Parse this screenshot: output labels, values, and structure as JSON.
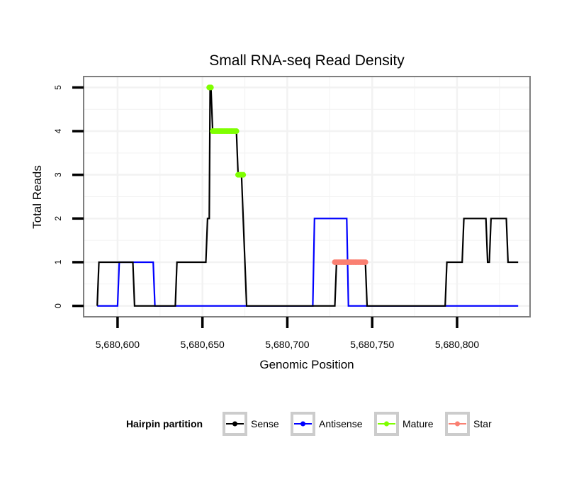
{
  "chart_data": {
    "type": "line",
    "title": "Small RNA-seq Read Density",
    "xlabel": "Genomic Position",
    "ylabel": "Total Reads",
    "xlim": [
      5680580,
      5680843
    ],
    "ylim": [
      -0.25,
      5.25
    ],
    "x_ticks": [
      5680600,
      5680650,
      5680700,
      5680750,
      5680800
    ],
    "x_tick_labels": [
      "5,680,600",
      "5,680,650",
      "5,680,700",
      "5,680,750",
      "5,680,800"
    ],
    "y_ticks": [
      0,
      1,
      2,
      3,
      4,
      5
    ],
    "y_tick_labels": [
      "0",
      "1",
      "2",
      "3",
      "4",
      "5"
    ],
    "grid": true,
    "legend": {
      "title": "Hairpin partition",
      "position": "bottom",
      "entries": [
        "Sense",
        "Antisense",
        "Mature",
        "Star"
      ]
    },
    "series": [
      {
        "name": "Sense",
        "color": "#000000",
        "style": "line",
        "x": [
          5680588,
          5680589,
          5680609,
          5680610,
          5680634,
          5680635,
          5680652,
          5680653,
          5680654,
          5680654.5,
          5680655,
          5680656,
          5680670,
          5680671,
          5680673,
          5680674,
          5680675,
          5680676,
          5680728,
          5680729,
          5680746,
          5680747,
          5680793,
          5680794,
          5680803,
          5680804,
          5680817,
          5680818,
          5680819,
          5680820,
          5680829,
          5680830,
          5680836
        ],
        "y": [
          0,
          1,
          1,
          0,
          0,
          1,
          1,
          2,
          2,
          5,
          5,
          4,
          4,
          3,
          3,
          2,
          1,
          0,
          0,
          1,
          1,
          0,
          0,
          1,
          1,
          2,
          2,
          1,
          1,
          2,
          2,
          1,
          1
        ]
      },
      {
        "name": "Antisense",
        "color": "#0000ff",
        "style": "line",
        "x": [
          5680588,
          5680600,
          5680601,
          5680621,
          5680622,
          5680715,
          5680716,
          5680735,
          5680736,
          5680836
        ],
        "y": [
          0,
          0,
          1,
          1,
          0,
          0,
          2,
          2,
          0,
          0
        ]
      },
      {
        "name": "Mature",
        "color": "#7fff00",
        "style": "points",
        "x": [
          5680654,
          5680655,
          5680656,
          5680657,
          5680658,
          5680659,
          5680660,
          5680661,
          5680662,
          5680663,
          5680664,
          5680665,
          5680666,
          5680667,
          5680668,
          5680669,
          5680670,
          5680671,
          5680672,
          5680673,
          5680674
        ],
        "y": [
          5,
          5,
          4,
          4,
          4,
          4,
          4,
          4,
          4,
          4,
          4,
          4,
          4,
          4,
          4,
          4,
          4,
          3,
          3,
          3,
          3
        ]
      },
      {
        "name": "Star",
        "color": "#fa8072",
        "style": "points",
        "x": [
          5680728,
          5680729,
          5680730,
          5680731,
          5680732,
          5680733,
          5680734,
          5680735,
          5680736,
          5680737,
          5680738,
          5680739,
          5680740,
          5680741,
          5680742,
          5680743,
          5680744,
          5680745,
          5680746
        ],
        "y": [
          1,
          1,
          1,
          1,
          1,
          1,
          1,
          1,
          1,
          1,
          1,
          1,
          1,
          1,
          1,
          1,
          1,
          1,
          1
        ]
      }
    ]
  }
}
